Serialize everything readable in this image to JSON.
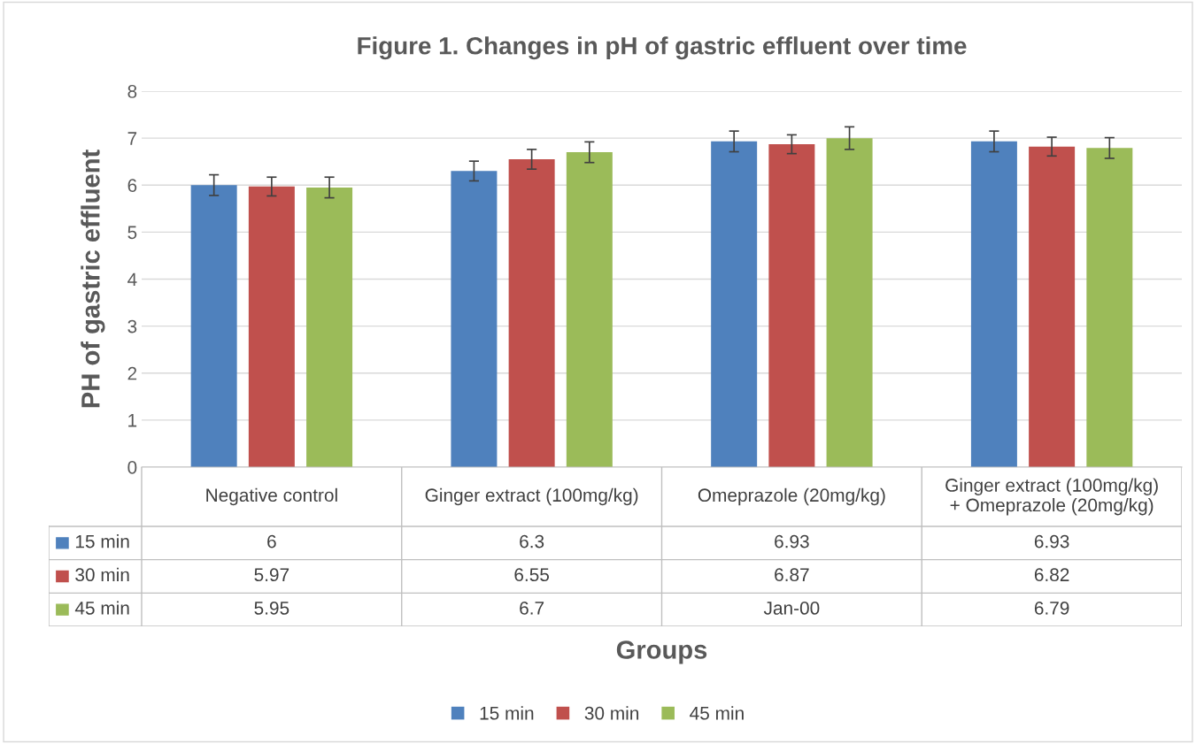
{
  "chart_data": {
    "type": "bar",
    "title": "Figure 1. Changes in pH of gastric effluent over time",
    "xlabel": "Groups",
    "ylabel": "PH of gastric effluent",
    "categories": [
      "Negative control",
      "Ginger extract (100mg/kg)",
      "Omeprazole (20mg/kg)",
      "Ginger extract (100mg/kg)\n+ Omeprazole (20mg/kg)"
    ],
    "series": [
      {
        "name": "15 min",
        "color": "#4f81bd",
        "values": [
          6,
          6.3,
          6.93,
          6.93
        ],
        "errors": [
          0.22,
          0.21,
          0.22,
          0.22
        ],
        "value_labels": [
          "6",
          "6.3",
          "6.93",
          "6.93"
        ]
      },
      {
        "name": "30 min",
        "color": "#c0504d",
        "values": [
          5.97,
          6.55,
          6.87,
          6.82
        ],
        "errors": [
          0.2,
          0.21,
          0.2,
          0.2
        ],
        "value_labels": [
          "5.97",
          "6.55",
          "6.87",
          "6.82"
        ]
      },
      {
        "name": "45 min",
        "color": "#9bbb59",
        "values": [
          5.95,
          6.7,
          7.0,
          6.79
        ],
        "errors": [
          0.22,
          0.22,
          0.24,
          0.22
        ],
        "value_labels": [
          "5.95",
          "6.7",
          "Jan-00",
          "6.79"
        ]
      }
    ],
    "ylim": [
      0,
      8
    ],
    "yticks": [
      0,
      1,
      2,
      3,
      4,
      5,
      6,
      7,
      8
    ],
    "grid": "y",
    "legend": "bottom"
  }
}
